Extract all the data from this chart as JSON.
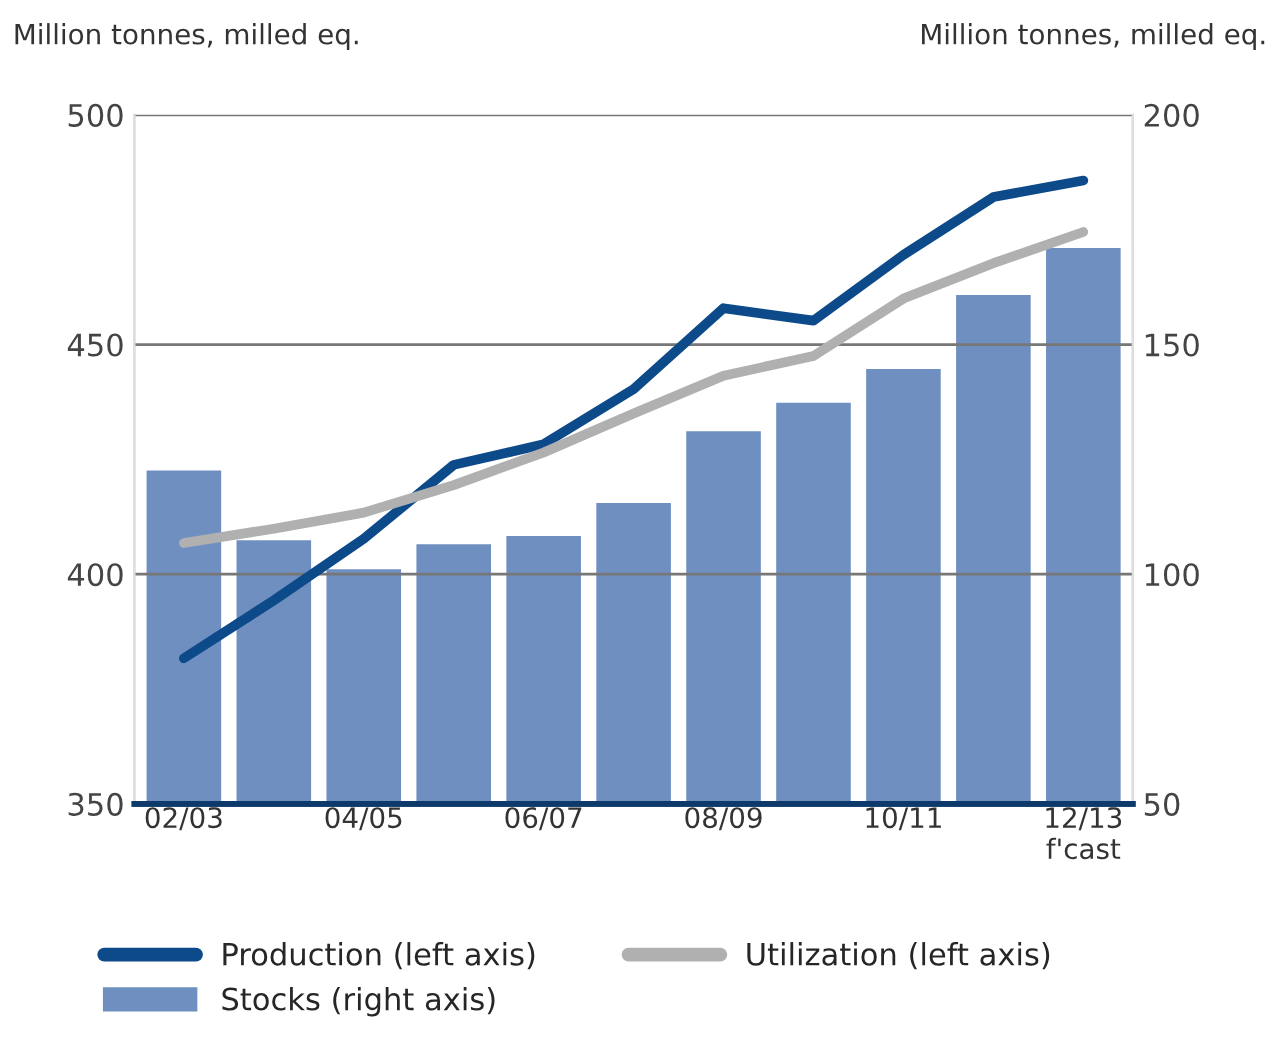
{
  "chart_data": {
    "type": "line",
    "ylabel": "Million tonnes, milled eq.",
    "y2label": "Million tonnes, milled eq.",
    "categories": [
      "02/03",
      null,
      "04/05",
      null,
      "06/07",
      null,
      "08/09",
      null,
      "10/11",
      null,
      "12/13\nf'cast"
    ],
    "series": [
      {
        "name": "Stocks (right axis)",
        "type": "bar",
        "axis": "y2",
        "color": "#6f8fc0",
        "values": [
          122.9,
          107.7,
          101.4,
          106.8,
          108.6,
          115.8,
          131.4,
          137.6,
          145.0,
          161.1,
          171.3
        ]
      },
      {
        "name": "Production (left axis)",
        "color": "#0d4a8a",
        "values": [
          381.7,
          394.3,
          407.7,
          423.8,
          428.3,
          440.3,
          457.9,
          455.2,
          469.5,
          482.1,
          485.7
        ]
      },
      {
        "name": "Utilization (left axis)",
        "color": "#b0b0b0",
        "values": [
          406.8,
          409.9,
          413.4,
          419.4,
          426.5,
          435.0,
          443.2,
          447.5,
          460.0,
          467.7,
          474.5
        ]
      }
    ],
    "ylim": [
      350,
      500
    ],
    "yticks": [
      350,
      400,
      450,
      500
    ],
    "y2lim": [
      50,
      200
    ],
    "y2ticks": [
      50,
      100,
      150,
      200
    ],
    "grid": "y",
    "legend": "bottom",
    "marker": "none",
    "line_style": "solid"
  }
}
